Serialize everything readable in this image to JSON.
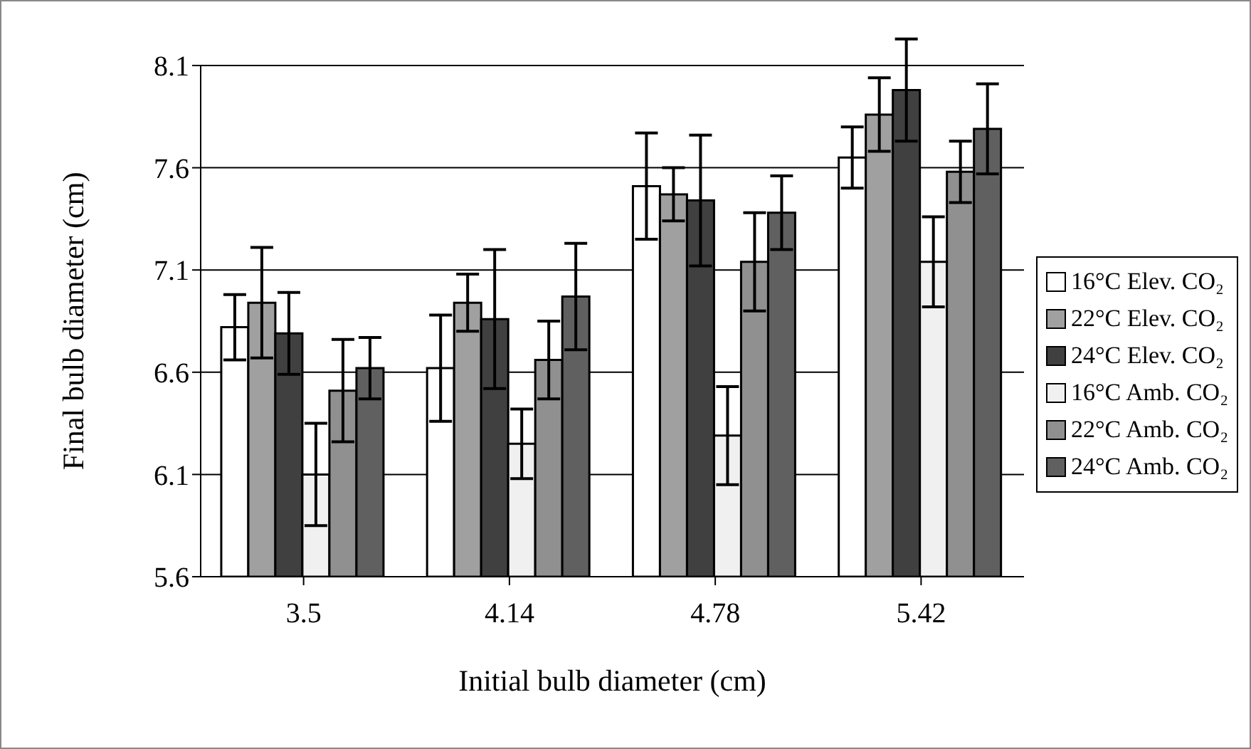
{
  "chart_data": {
    "type": "bar",
    "xlabel": "Initial bulb diameter (cm)",
    "ylabel": "Final bulb diameter (cm)",
    "categories": [
      "3.5",
      "4.14",
      "4.78",
      "5.42"
    ],
    "series": [
      {
        "name": "16°C Elev. CO₂",
        "color": "#ffffff",
        "values": [
          6.82,
          6.62,
          7.51,
          7.65
        ],
        "errors": [
          0.16,
          0.26,
          0.26,
          0.15
        ]
      },
      {
        "name": "22°C Elev. CO₂",
        "color": "#a0a0a0",
        "values": [
          6.94,
          6.94,
          7.47,
          7.86
        ],
        "errors": [
          0.27,
          0.14,
          0.13,
          0.18
        ]
      },
      {
        "name": "24°C Elev. CO₂",
        "color": "#404040",
        "values": [
          6.79,
          6.86,
          7.44,
          7.98
        ],
        "errors": [
          0.2,
          0.34,
          0.32,
          0.25
        ]
      },
      {
        "name": "16°C Amb. CO₂",
        "color": "#f0f0f0",
        "values": [
          6.1,
          6.25,
          6.29,
          7.14
        ],
        "errors": [
          0.25,
          0.17,
          0.24,
          0.22
        ]
      },
      {
        "name": "22°C Amb. CO₂",
        "color": "#909090",
        "values": [
          6.51,
          6.66,
          7.14,
          7.58
        ],
        "errors": [
          0.25,
          0.19,
          0.24,
          0.15
        ]
      },
      {
        "name": "24°C Amb. CO₂",
        "color": "#606060",
        "values": [
          6.62,
          6.97,
          7.38,
          7.79
        ],
        "errors": [
          0.15,
          0.26,
          0.18,
          0.22
        ]
      }
    ],
    "ylim": [
      5.6,
      8.1
    ],
    "yticks": [
      5.6,
      6.1,
      6.6,
      7.1,
      7.6,
      8.1
    ],
    "grid": "y",
    "legend": "right"
  }
}
